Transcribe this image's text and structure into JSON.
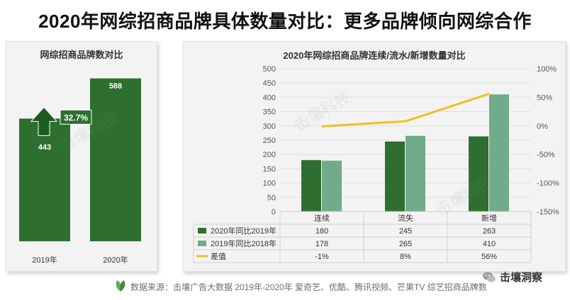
{
  "title": "2020年网综招商品牌具体数量对比：更多品牌倾向网综合作",
  "left_chart": {
    "panel_title": "网综招商品牌数对比",
    "categories": [
      "2019年",
      "2020年"
    ],
    "values": [
      443,
      588
    ],
    "growth_label": "32.7%",
    "color": "#2e6f30"
  },
  "right_chart": {
    "panel_title": "2020年网综招商品牌连续/流水/新增数量对比",
    "colors": {
      "series1": "#2e6f30",
      "series2": "#72ab8a",
      "line": "#f0c020"
    }
  },
  "chart_data": [
    {
      "type": "bar",
      "title": "网综招商品牌数对比",
      "categories": [
        "2019年",
        "2020年"
      ],
      "values": [
        443,
        588
      ],
      "annotation": "32.7%"
    },
    {
      "type": "bar",
      "title": "2020年网综招商品牌连续/流水/新增数量对比",
      "categories": [
        "连续",
        "流失",
        "新增"
      ],
      "series": [
        {
          "name": "2020年同比2019年",
          "values": [
            180,
            245,
            263
          ]
        },
        {
          "name": "2019年同比2018年",
          "values": [
            178,
            265,
            410
          ]
        },
        {
          "name": "差值",
          "type": "line",
          "axis": "right",
          "values": [
            -1,
            8,
            56
          ],
          "labels": [
            "-1%",
            "8%",
            "56%"
          ]
        }
      ],
      "ylim": [
        0,
        500
      ],
      "yticks": [
        "0",
        "50",
        "100",
        "150",
        "200",
        "250",
        "300",
        "350",
        "400",
        "450",
        "500"
      ],
      "y2lim": [
        -150,
        100
      ],
      "y2ticks": [
        "-150%",
        "-100%",
        "-50%",
        "0%",
        "50%",
        "100%"
      ],
      "table": true
    }
  ],
  "footer": {
    "source": "数据来源：击壤广告大数据 2019年-2020年 爱奇艺、优酷、腾讯视频、芒果TV 综艺招商品牌数",
    "brand": "击壤洞察"
  }
}
